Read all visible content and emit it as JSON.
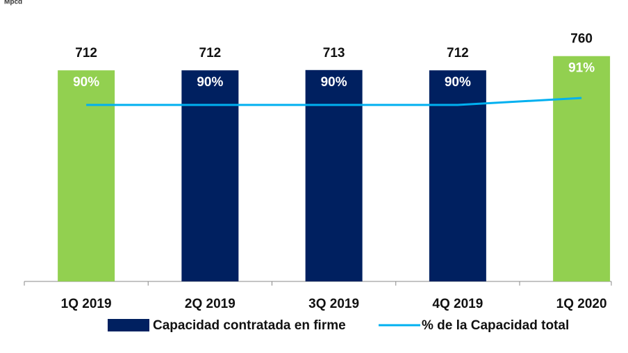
{
  "chart_data": {
    "type": "bar_line",
    "y_label": "Mpcd",
    "categories": [
      "1Q 2019",
      "2Q 2019",
      "3Q 2019",
      "4Q 2019",
      "1Q 2020"
    ],
    "series": [
      {
        "name": "Capacidad contratada en firme",
        "type": "bar",
        "color": "#002060",
        "bar_colors": [
          "#92d050",
          "#002060",
          "#002060",
          "#002060",
          "#92d050"
        ],
        "values": [
          712,
          712,
          713,
          712,
          760
        ]
      },
      {
        "name": "% de la Capacidad total",
        "type": "line",
        "axis": "y2",
        "color": "#00b0f0",
        "values": [
          90,
          90,
          90,
          90,
          91
        ],
        "value_labels": [
          "90%",
          "90%",
          "90%",
          "90%",
          "91%"
        ]
      }
    ],
    "ylim": [
      0,
      900
    ],
    "y2lim": [
      64.6,
      103
    ],
    "legend": "bottom"
  }
}
